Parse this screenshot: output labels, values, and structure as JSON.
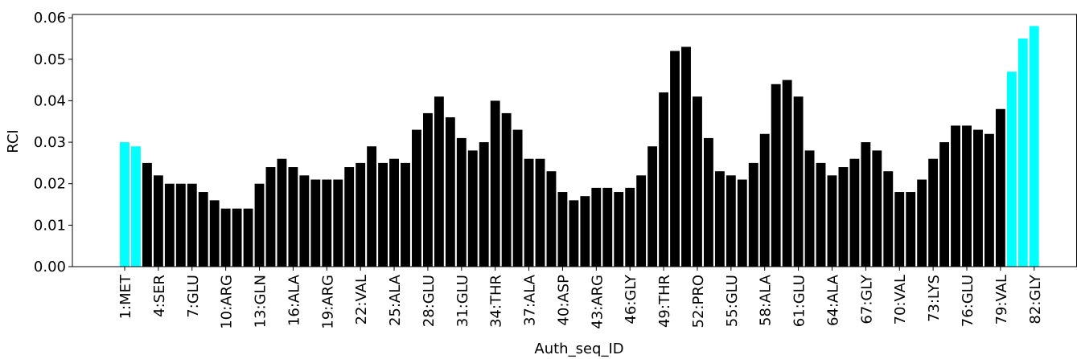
{
  "chart_data": {
    "type": "bar",
    "xlabel": "Auth_seq_ID",
    "ylabel": "RCI",
    "categories": [
      "1:MET",
      null,
      null,
      "4:SER",
      null,
      null,
      "7:GLU",
      null,
      null,
      "10:ARG",
      null,
      null,
      "13:GLN",
      null,
      null,
      "16:ALA",
      null,
      null,
      "19:ARG",
      null,
      null,
      "22:VAL",
      null,
      null,
      "25:ALA",
      null,
      null,
      "28:GLU",
      null,
      null,
      "31:GLU",
      null,
      null,
      "34:THR",
      null,
      null,
      "37:ALA",
      null,
      null,
      "40:ASP",
      null,
      null,
      "43:ARG",
      null,
      null,
      "46:GLY",
      null,
      null,
      "49:THR",
      null,
      null,
      "52:PRO",
      null,
      null,
      "55:GLU",
      null,
      null,
      "58:ALA",
      null,
      null,
      "61:GLU",
      null,
      null,
      "64:ALA",
      null,
      null,
      "67:GLY",
      null,
      null,
      "70:VAL",
      null,
      null,
      "73:LYS",
      null,
      null,
      "76:GLU",
      null,
      null,
      "79:VAL",
      null,
      null,
      "82:GLY"
    ],
    "values": [
      0.03,
      0.029,
      0.025,
      0.022,
      0.02,
      0.02,
      0.02,
      0.018,
      0.016,
      0.014,
      0.014,
      0.014,
      0.02,
      0.024,
      0.026,
      0.024,
      0.022,
      0.021,
      0.021,
      0.021,
      0.024,
      0.025,
      0.029,
      0.025,
      0.026,
      0.025,
      0.033,
      0.037,
      0.041,
      0.036,
      0.031,
      0.028,
      0.03,
      0.04,
      0.037,
      0.033,
      0.026,
      0.026,
      0.023,
      0.018,
      0.016,
      0.017,
      0.019,
      0.019,
      0.018,
      0.019,
      0.022,
      0.029,
      0.042,
      0.052,
      0.053,
      0.041,
      0.031,
      0.023,
      0.022,
      0.021,
      0.025,
      0.032,
      0.044,
      0.045,
      0.041,
      0.028,
      0.025,
      0.022,
      0.024,
      0.026,
      0.03,
      0.028,
      0.023,
      0.018,
      0.018,
      0.021,
      0.026,
      0.03,
      0.034,
      0.034,
      0.033,
      0.032,
      0.038,
      0.047,
      0.055,
      0.058
    ],
    "colors": [
      "#00ffff",
      "#00ffff",
      "#000000",
      "#000000",
      "#000000",
      "#000000",
      "#000000",
      "#000000",
      "#000000",
      "#000000",
      "#000000",
      "#000000",
      "#000000",
      "#000000",
      "#000000",
      "#000000",
      "#000000",
      "#000000",
      "#000000",
      "#000000",
      "#000000",
      "#000000",
      "#000000",
      "#000000",
      "#000000",
      "#000000",
      "#000000",
      "#000000",
      "#000000",
      "#000000",
      "#000000",
      "#000000",
      "#000000",
      "#000000",
      "#000000",
      "#000000",
      "#000000",
      "#000000",
      "#000000",
      "#000000",
      "#000000",
      "#000000",
      "#000000",
      "#000000",
      "#000000",
      "#000000",
      "#000000",
      "#000000",
      "#000000",
      "#000000",
      "#000000",
      "#000000",
      "#000000",
      "#000000",
      "#000000",
      "#000000",
      "#000000",
      "#000000",
      "#000000",
      "#000000",
      "#000000",
      "#000000",
      "#000000",
      "#000000",
      "#000000",
      "#000000",
      "#000000",
      "#000000",
      "#000000",
      "#000000",
      "#000000",
      "#000000",
      "#000000",
      "#000000",
      "#000000",
      "#000000",
      "#000000",
      "#000000",
      "#000000",
      "#00ffff",
      "#00ffff",
      "#00ffff"
    ],
    "ylim": [
      0,
      0.0608
    ],
    "yticks": [
      {
        "value": 0,
        "label": "0.00"
      },
      0.01,
      0.02,
      0.03,
      0.04,
      0.05,
      0.06
    ],
    "grid": false
  }
}
